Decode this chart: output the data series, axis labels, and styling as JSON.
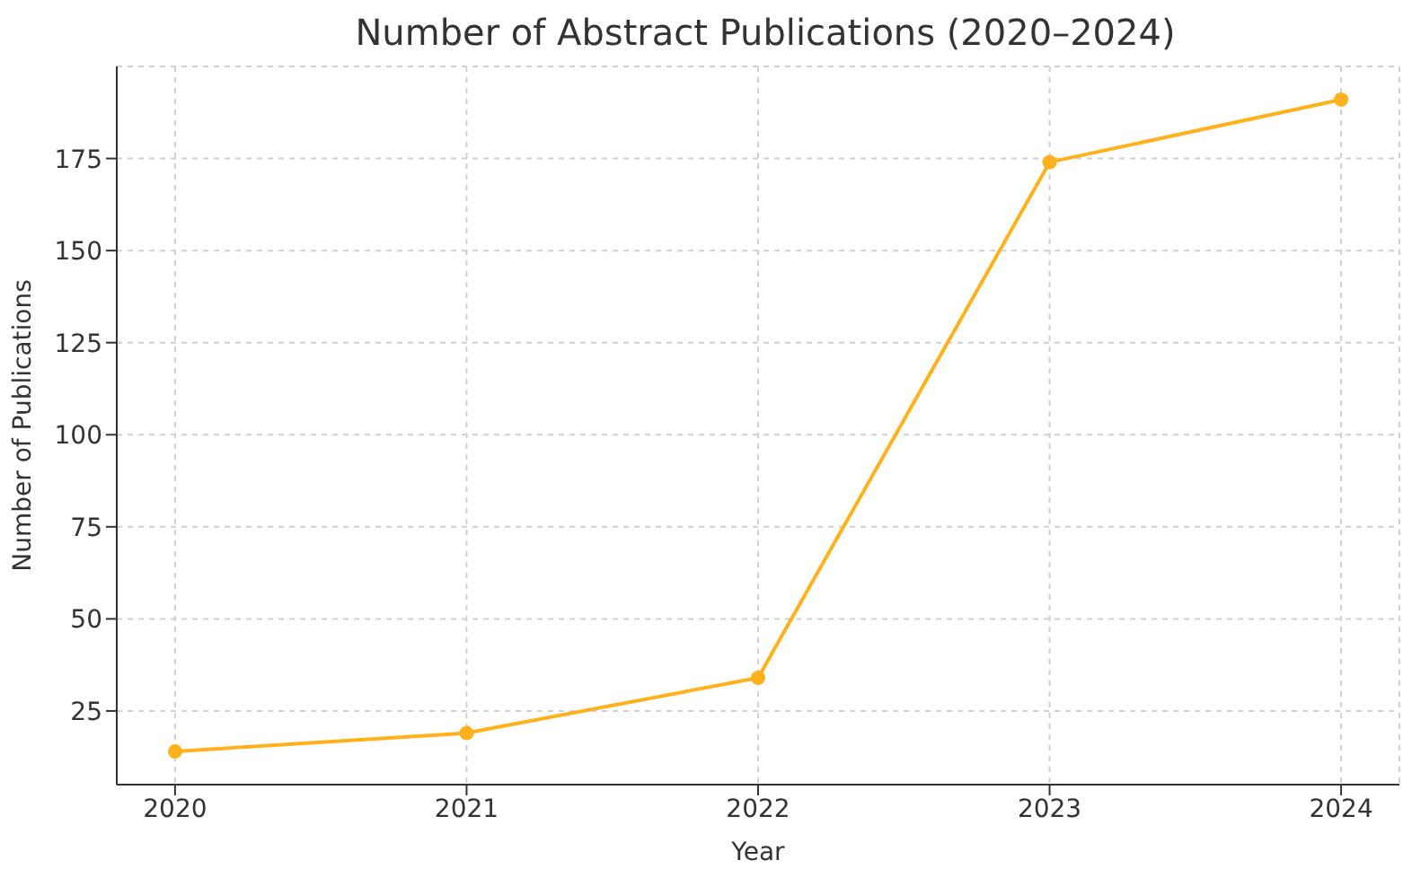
{
  "chart_data": {
    "type": "line",
    "title": "Number of Abstract Publications (2020–2024)",
    "xlabel": "Year",
    "ylabel": "Number of Publications",
    "x": [
      2020,
      2021,
      2022,
      2023,
      2024
    ],
    "series": [
      {
        "color": "#ffb11b",
        "values": [
          14,
          19,
          34,
          174,
          191
        ]
      }
    ],
    "xlim": [
      2019.8,
      2024.2
    ],
    "xticks": [
      2020,
      2021,
      2022,
      2023,
      2024
    ],
    "ylim": [
      5,
      200
    ],
    "yticks": [
      25,
      50,
      75,
      100,
      125,
      150,
      175
    ],
    "grid": true,
    "marker": "circle",
    "line_style": "solid",
    "legend": false
  }
}
